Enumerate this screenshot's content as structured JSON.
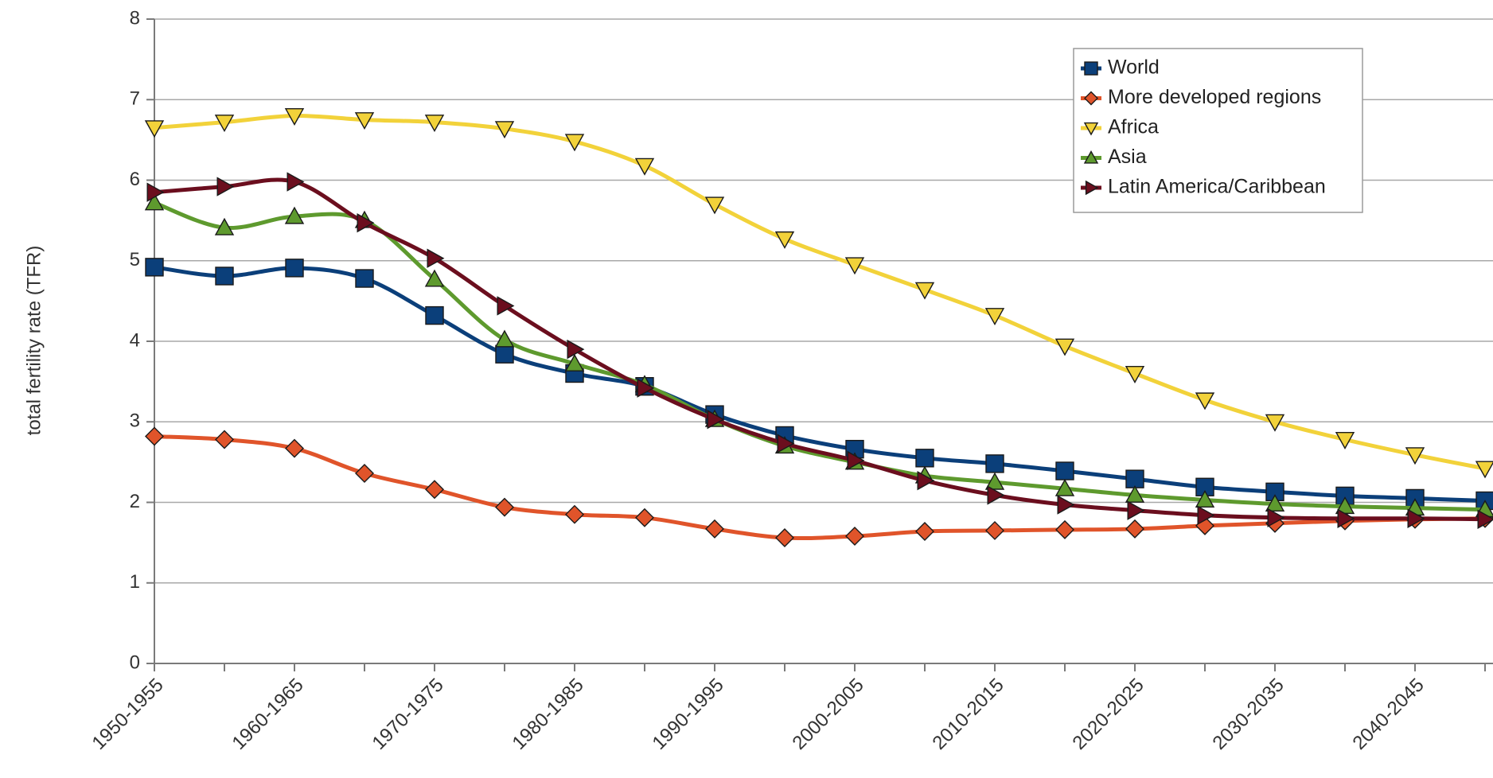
{
  "chart_data": {
    "type": "line",
    "title": "",
    "xlabel": "",
    "ylabel": "total fertility rate (TFR)",
    "ylim": [
      0,
      8
    ],
    "yticks": [
      0,
      1,
      2,
      3,
      4,
      5,
      6,
      7,
      8
    ],
    "grid": "horizontal",
    "legend_position": "top-right",
    "categories": [
      "1950-1955",
      "1955-1960",
      "1960-1965",
      "1965-1970",
      "1970-1975",
      "1975-1980",
      "1980-1985",
      "1985-1990",
      "1990-1995",
      "1995-2000",
      "2000-2005",
      "2005-2010",
      "2010-2015",
      "2015-2020",
      "2020-2025",
      "2025-2030",
      "2030-2035",
      "2035-2040",
      "2040-2045",
      "2045-2050"
    ],
    "category_labels_shown": [
      "1950-1955",
      "",
      "1960-1965",
      "",
      "1970-1975",
      "",
      "1980-1985",
      "",
      "1990-1995",
      "",
      "2000-2005",
      "",
      "2010-2015",
      "",
      "2020-2025",
      "",
      "2030-2035",
      "",
      "2040-2045",
      ""
    ],
    "series": [
      {
        "name": "World",
        "color": "#0b3f7a",
        "marker": "square",
        "values": [
          4.92,
          4.81,
          4.91,
          4.78,
          4.32,
          3.84,
          3.6,
          3.44,
          3.09,
          2.83,
          2.66,
          2.55,
          2.48,
          2.39,
          2.29,
          2.19,
          2.13,
          2.08,
          2.05,
          2.02
        ]
      },
      {
        "name": "More developed regions",
        "color": "#e0542a",
        "marker": "diamond",
        "values": [
          2.82,
          2.78,
          2.67,
          2.36,
          2.16,
          1.94,
          1.85,
          1.81,
          1.67,
          1.56,
          1.58,
          1.64,
          1.65,
          1.66,
          1.67,
          1.71,
          1.74,
          1.77,
          1.79,
          1.8
        ]
      },
      {
        "name": "Africa",
        "color": "#f2d23a",
        "marker": "triangle-down",
        "values": [
          6.65,
          6.72,
          6.8,
          6.75,
          6.72,
          6.64,
          6.48,
          6.18,
          5.7,
          5.27,
          4.95,
          4.64,
          4.32,
          3.94,
          3.6,
          3.27,
          3.0,
          2.78,
          2.59,
          2.42
        ]
      },
      {
        "name": "Asia",
        "color": "#5e9a2e",
        "marker": "triangle-up",
        "values": [
          5.72,
          5.41,
          5.55,
          5.5,
          4.77,
          4.02,
          3.72,
          3.46,
          3.03,
          2.7,
          2.5,
          2.33,
          2.25,
          2.17,
          2.09,
          2.03,
          1.98,
          1.95,
          1.93,
          1.91
        ]
      },
      {
        "name": "Latin America/Caribbean",
        "color": "#6b0e1e",
        "marker": "triangle-right",
        "values": [
          5.85,
          5.92,
          5.98,
          5.47,
          5.03,
          4.44,
          3.9,
          3.42,
          3.03,
          2.73,
          2.52,
          2.27,
          2.09,
          1.97,
          1.9,
          1.84,
          1.81,
          1.8,
          1.8,
          1.79
        ]
      }
    ]
  }
}
